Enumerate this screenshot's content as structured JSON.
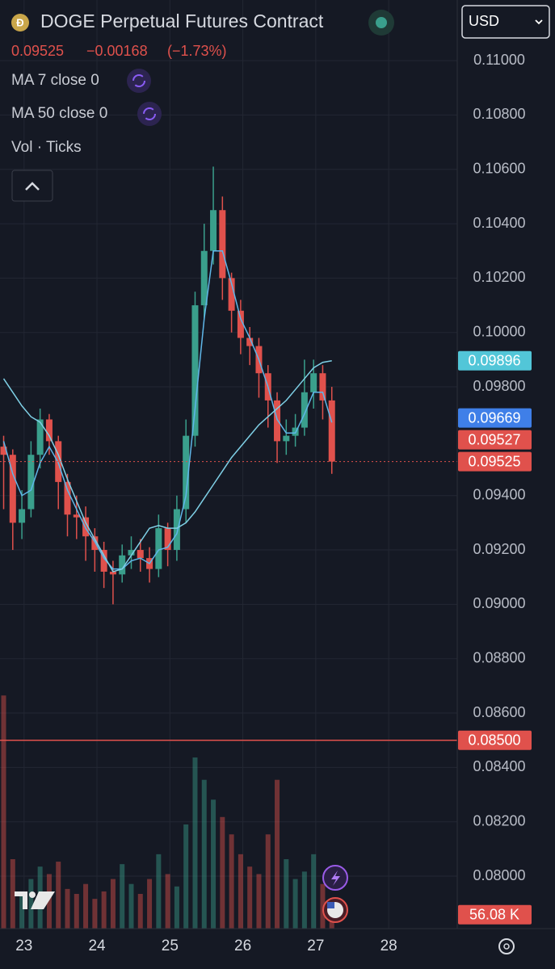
{
  "chart_data": {
    "type": "candlestick",
    "title": "DOGE Perpetual Futures Contract",
    "last_price": 0.09525,
    "change": {
      "value": -0.00168,
      "label": "−0.00168"
    },
    "change_pct": {
      "value": -1.73,
      "label": "(−1.73%)"
    },
    "indicators": [
      "MA 7 close 0",
      "MA 50 close 0",
      "Vol · Ticks"
    ],
    "currency": "USD",
    "x": [
      22.72,
      22.845,
      22.97,
      23.095,
      23.22,
      23.345,
      23.47,
      23.595,
      23.72,
      23.845,
      23.97,
      24.095,
      24.22,
      24.345,
      24.47,
      24.595,
      24.72,
      24.845,
      24.97,
      25.095,
      25.22,
      25.345,
      25.47,
      25.595,
      25.72,
      25.845,
      25.97,
      26.095,
      26.22,
      26.345,
      26.47,
      26.595,
      26.72,
      26.845,
      26.97,
      27.095,
      27.22
    ],
    "open": [
      0.0958,
      0.0955,
      0.093,
      0.0935,
      0.0955,
      0.0968,
      0.096,
      0.0945,
      0.0933,
      0.0932,
      0.0925,
      0.092,
      0.0912,
      0.0911,
      0.0918,
      0.092,
      0.0917,
      0.0913,
      0.0928,
      0.092,
      0.0935,
      0.0962,
      0.101,
      0.103,
      0.1045,
      0.102,
      0.1008,
      0.0998,
      0.0995,
      0.0985,
      0.0975,
      0.096,
      0.0962,
      0.0965,
      0.0978,
      0.0985,
      0.0975
    ],
    "high": [
      0.0962,
      0.0957,
      0.0942,
      0.096,
      0.0972,
      0.097,
      0.0962,
      0.0948,
      0.094,
      0.0936,
      0.0928,
      0.0923,
      0.0916,
      0.0922,
      0.0925,
      0.0924,
      0.0921,
      0.0933,
      0.093,
      0.094,
      0.0968,
      0.1015,
      0.104,
      0.1061,
      0.105,
      0.1022,
      0.1012,
      0.1002,
      0.0998,
      0.0988,
      0.0978,
      0.0968,
      0.097,
      0.099,
      0.099,
      0.0988,
      0.098
    ],
    "low": [
      0.0935,
      0.092,
      0.0924,
      0.0932,
      0.095,
      0.0955,
      0.0935,
      0.0925,
      0.0924,
      0.0916,
      0.0912,
      0.0906,
      0.09,
      0.0908,
      0.0913,
      0.0912,
      0.0908,
      0.091,
      0.0914,
      0.0916,
      0.093,
      0.0958,
      0.1005,
      0.1025,
      0.1012,
      0.1,
      0.0992,
      0.0988,
      0.0976,
      0.0965,
      0.0952,
      0.0955,
      0.0958,
      0.0962,
      0.0972,
      0.0968,
      0.0948
    ],
    "close": [
      0.0955,
      0.093,
      0.0935,
      0.0955,
      0.0968,
      0.096,
      0.0945,
      0.0933,
      0.0932,
      0.0925,
      0.092,
      0.0912,
      0.0911,
      0.0918,
      0.092,
      0.0917,
      0.0913,
      0.0928,
      0.092,
      0.0935,
      0.0962,
      0.101,
      0.103,
      0.1045,
      0.102,
      0.1008,
      0.0998,
      0.0995,
      0.0985,
      0.0975,
      0.096,
      0.0962,
      0.0965,
      0.0978,
      0.0985,
      0.0975,
      0.09525
    ],
    "ma_lines": [
      {
        "color": "#5fb6e8",
        "values": [
          0.096,
          0.0948,
          0.094,
          0.0942,
          0.0952,
          0.0958,
          0.0952,
          0.0942,
          0.0935,
          0.0928,
          0.0923,
          0.0917,
          0.0913,
          0.0913,
          0.0916,
          0.0917,
          0.0915,
          0.092,
          0.0921,
          0.0926,
          0.094,
          0.0972,
          0.1005,
          0.103,
          0.103,
          0.1018,
          0.1005,
          0.0998,
          0.099,
          0.098,
          0.0968,
          0.0963,
          0.0963,
          0.097,
          0.0978,
          0.0978,
          0.09669
        ]
      },
      {
        "color": "#7fd0e6",
        "values": [
          0.0983,
          0.0978,
          0.0973,
          0.0969,
          0.0967,
          0.0962,
          0.0955,
          0.0946,
          0.0938,
          0.093,
          0.0924,
          0.0918,
          0.0912,
          0.0913,
          0.0918,
          0.0923,
          0.0928,
          0.0929,
          0.0928,
          0.0928,
          0.093,
          0.0934,
          0.0939,
          0.0944,
          0.0949,
          0.0954,
          0.0958,
          0.0962,
          0.0966,
          0.0969,
          0.0972,
          0.0975,
          0.0979,
          0.0983,
          0.0987,
          0.0989,
          0.09896
        ]
      }
    ],
    "volume": [
      940000,
      280000,
      150000,
      200000,
      250000,
      220000,
      270000,
      160000,
      140000,
      180000,
      120000,
      150000,
      200000,
      260000,
      180000,
      140000,
      200000,
      300000,
      220000,
      170000,
      420000,
      690000,
      600000,
      520000,
      450000,
      380000,
      300000,
      250000,
      220000,
      380000,
      600000,
      280000,
      200000,
      230000,
      300000,
      180000,
      56080
    ],
    "volume_value_label": "56.08 K",
    "volume_lim": [
      0,
      700000
    ],
    "up_color": "#3a9f8c",
    "down_color": "#e0514c",
    "xlim": [
      22.67,
      28.94
    ],
    "xticks": [
      23,
      24,
      25,
      26,
      27,
      28
    ],
    "ylim": [
      0.07807,
      0.11223
    ],
    "yticks": [
      {
        "value": 0.11,
        "label": "0.11000"
      },
      {
        "value": 0.108,
        "label": "0.10800"
      },
      {
        "value": 0.106,
        "label": "0.10600"
      },
      {
        "value": 0.104,
        "label": "0.10400"
      },
      {
        "value": 0.102,
        "label": "0.10200"
      },
      {
        "value": 0.1,
        "label": "0.10000"
      },
      {
        "value": 0.098,
        "label": "0.09800"
      },
      {
        "value": 0.094,
        "label": "0.09400"
      },
      {
        "value": 0.092,
        "label": "0.09200"
      },
      {
        "value": 0.09,
        "label": "0.09000"
      },
      {
        "value": 0.088,
        "label": "0.08800"
      },
      {
        "value": 0.086,
        "label": "0.08600"
      },
      {
        "value": 0.084,
        "label": "0.08400"
      },
      {
        "value": 0.082,
        "label": "0.08200"
      },
      {
        "value": 0.08,
        "label": "0.08000"
      }
    ],
    "markers": [
      {
        "value": 0.09896,
        "color": "#52c6d8"
      },
      {
        "value": 0.09669,
        "color": "#3f7fe8"
      },
      {
        "value": 0.09527,
        "color": "#e0514c"
      },
      {
        "value": 0.09525,
        "color": "#e0514c",
        "line": "dotted"
      },
      {
        "value": 0.085,
        "label": "0.08500",
        "color": "#e0514c",
        "line": "solid"
      }
    ],
    "grid": true
  }
}
